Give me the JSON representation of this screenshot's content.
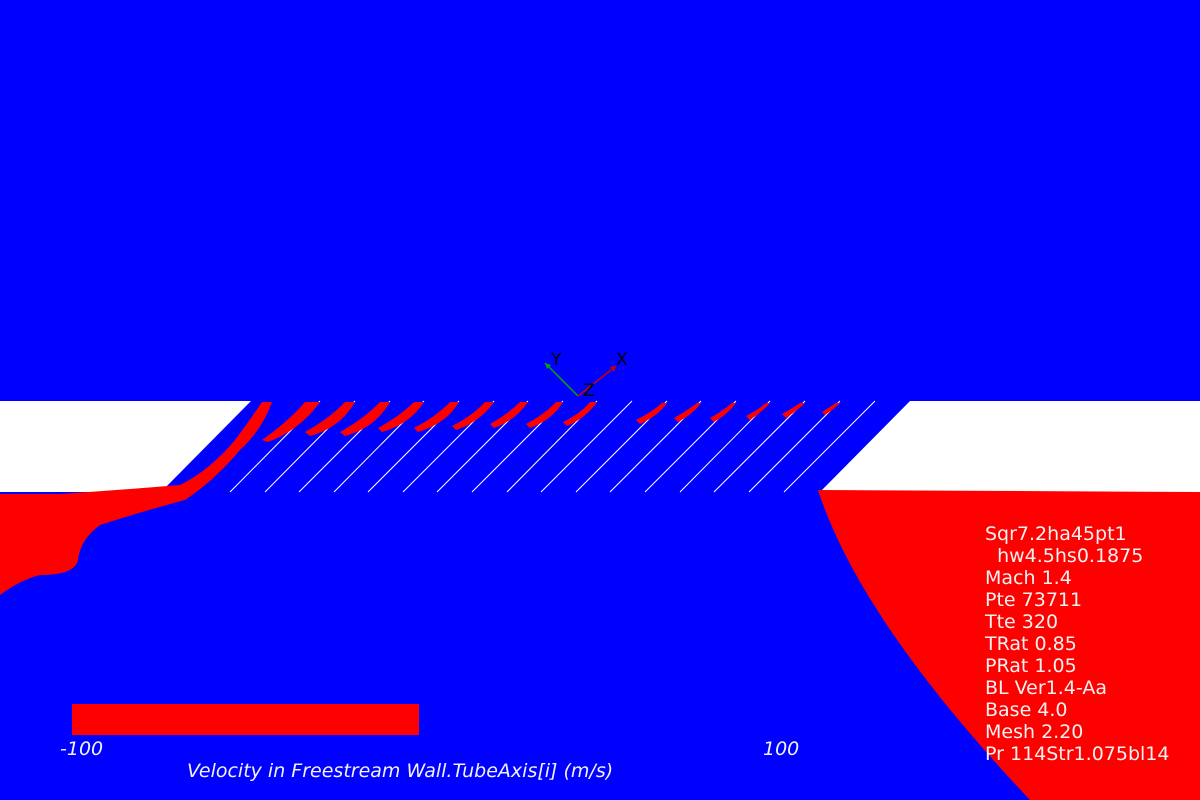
{
  "colors": {
    "background": "#0000ff",
    "highlight": "#ff0000",
    "wall": "#ffffff",
    "text": "#f2f2f2"
  },
  "triad": {
    "x_label": "X",
    "y_label": "Y",
    "z_label": "Z"
  },
  "colorbar": {
    "min_label": "-100",
    "max_label": "100",
    "title": "Velocity in Freestream Wall.TubeAxis[i] (m/s)"
  },
  "info": {
    "lines": [
      "Sqr7.2ha45pt1",
      "  hw4.5hs0.1875",
      "Mach 1.4",
      "Pte 73711",
      "Tte 320",
      "TRat 0.85",
      "PRat 1.05",
      "BL Ver1.4-Aa",
      "Base 4.0",
      "Mesh 2.20",
      "Pr 114Str1.075bl14"
    ]
  }
}
